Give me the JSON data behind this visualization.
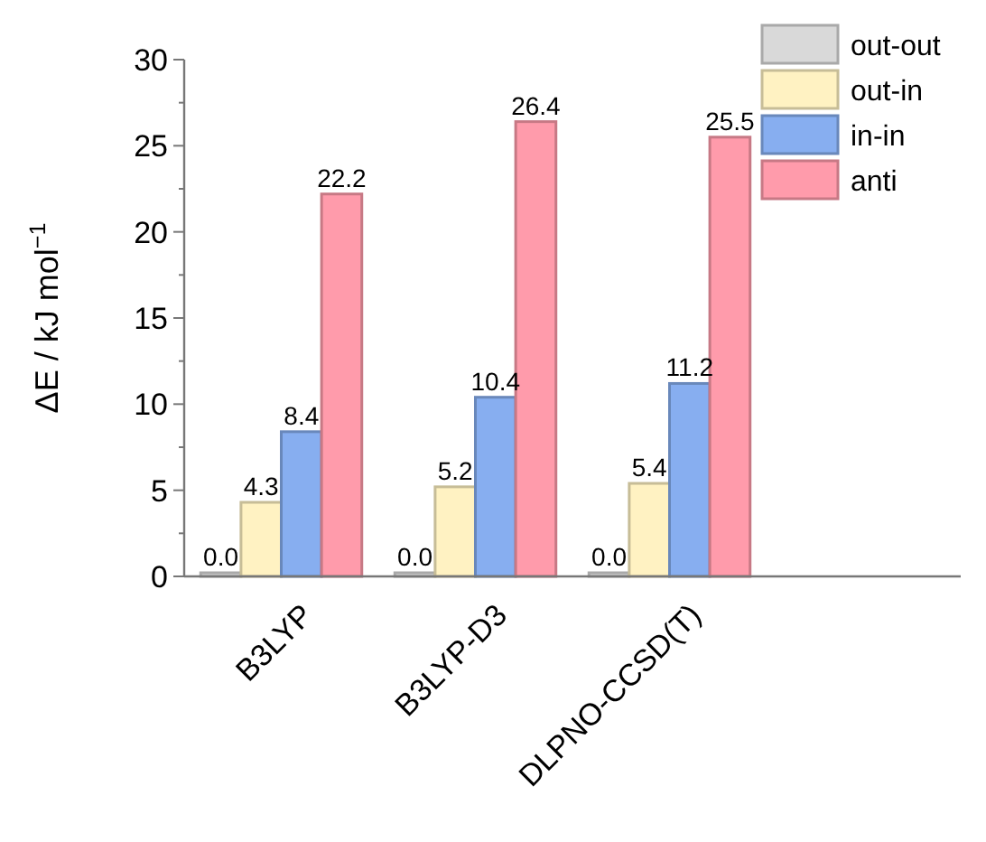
{
  "chart_data": {
    "type": "bar",
    "ylabel": "ΔE / kJ mol$^{−1}$",
    "categories": [
      "B3LYP",
      "B3LYP-D3",
      "DLPNO-CCSD(T)"
    ],
    "series": [
      {
        "name": "out-out",
        "color": "#d9d9d9",
        "values": [
          0.0,
          0.0,
          0.0
        ],
        "value_labels": [
          "0.0",
          "0.0",
          "0.0"
        ]
      },
      {
        "name": "out-in",
        "color": "#fff2c2",
        "values": [
          4.3,
          5.2,
          5.4
        ],
        "value_labels": [
          "4.3",
          "5.2",
          "5.4"
        ]
      },
      {
        "name": "in-in",
        "color": "#87aef0",
        "values": [
          8.4,
          10.4,
          11.2
        ],
        "value_labels": [
          "8.4",
          "10.4",
          "11.2"
        ]
      },
      {
        "name": "anti",
        "color": "#ff9bab",
        "values": [
          22.2,
          26.4,
          25.5
        ],
        "value_labels": [
          "22.2",
          "26.4",
          "25.5"
        ]
      }
    ],
    "ylim": [
      0,
      30
    ],
    "yticks": [
      0,
      {
        "value": 2.5,
        "label": null
      },
      5,
      {
        "value": 7.5,
        "label": null
      },
      10,
      {
        "value": 12.5,
        "label": null
      },
      15,
      {
        "value": 17.5,
        "label": null
      },
      20,
      {
        "value": 22.5,
        "label": null
      },
      25,
      {
        "value": 27.5,
        "label": null
      },
      30
    ],
    "legend": "top right",
    "grid": false
  }
}
